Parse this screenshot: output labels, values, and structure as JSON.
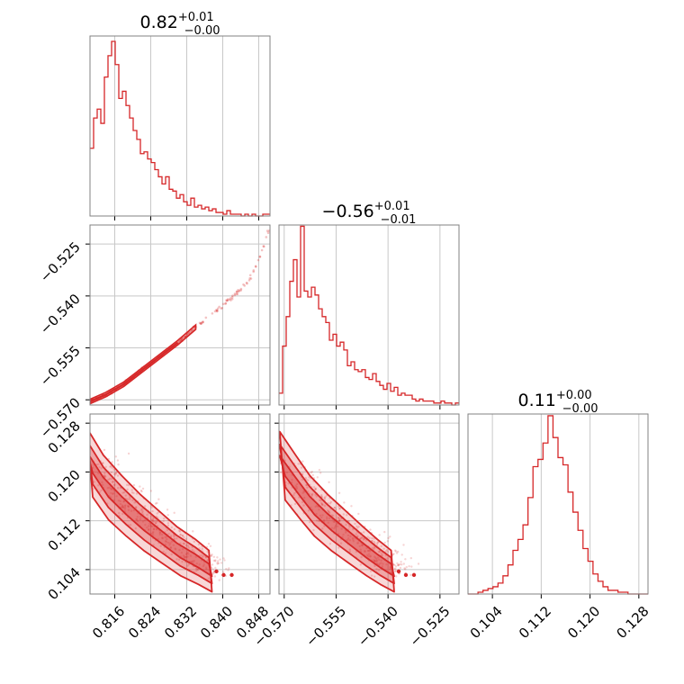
{
  "chart_data": {
    "type": "corner",
    "color": "#d62728",
    "parameters": [
      {
        "id": "p0",
        "title": "0.82",
        "plus": "+0.01",
        "minus": "−0.00",
        "range": [
          0.8105,
          0.8505
        ],
        "ticks": [
          "0.816",
          "0.824",
          "0.832",
          "0.840",
          "0.848"
        ],
        "tick_values": [
          0.816,
          0.824,
          0.832,
          0.84,
          0.848
        ]
      },
      {
        "id": "p1",
        "title": "−0.56",
        "plus": "+0.01",
        "minus": "−0.01",
        "range": [
          -0.5715,
          -0.5195
        ],
        "ticks": [
          "−0.570",
          "−0.555",
          "−0.540",
          "−0.525"
        ],
        "tick_values": [
          -0.57,
          -0.555,
          -0.54,
          -0.525
        ]
      },
      {
        "id": "p2",
        "title": "0.11",
        "plus": "+0.00",
        "minus": "−0.00",
        "range": [
          0.1,
          0.1295
        ],
        "ticks": [
          "0.104",
          "0.112",
          "0.120",
          "0.128"
        ],
        "tick_values": [
          0.104,
          0.112,
          0.12,
          0.128
        ]
      }
    ],
    "histograms": [
      {
        "param": 0,
        "max": 0.97,
        "counts": [
          0.38,
          0.55,
          0.6,
          0.52,
          0.78,
          0.9,
          0.98,
          0.85,
          0.66,
          0.7,
          0.62,
          0.55,
          0.48,
          0.43,
          0.35,
          0.36,
          0.32,
          0.3,
          0.26,
          0.22,
          0.18,
          0.22,
          0.15,
          0.14,
          0.1,
          0.12,
          0.08,
          0.06,
          0.1,
          0.05,
          0.06,
          0.04,
          0.05,
          0.03,
          0.04,
          0.02,
          0.02,
          0.01,
          0.03,
          0.01,
          0.01,
          0.01,
          0.0,
          0.01,
          0.0,
          0.01,
          0.0,
          0.0,
          0.01,
          0.01
        ]
      },
      {
        "param": 1,
        "max": 0.88,
        "counts": [
          0.06,
          0.3,
          0.45,
          0.63,
          0.74,
          0.55,
          0.91,
          0.58,
          0.55,
          0.6,
          0.56,
          0.49,
          0.45,
          0.42,
          0.33,
          0.36,
          0.3,
          0.32,
          0.28,
          0.2,
          0.22,
          0.18,
          0.17,
          0.18,
          0.14,
          0.13,
          0.16,
          0.12,
          0.1,
          0.08,
          0.11,
          0.07,
          0.09,
          0.05,
          0.06,
          0.05,
          0.05,
          0.03,
          0.02,
          0.03,
          0.02,
          0.02,
          0.02,
          0.01,
          0.01,
          0.02,
          0.01,
          0.01,
          0.0,
          0.01
        ]
      },
      {
        "param": 2,
        "max": 0.95,
        "counts": [
          0.0,
          0.0,
          0.01,
          0.02,
          0.03,
          0.04,
          0.06,
          0.1,
          0.16,
          0.24,
          0.3,
          0.38,
          0.53,
          0.7,
          0.74,
          0.83,
          0.98,
          0.86,
          0.75,
          0.71,
          0.56,
          0.45,
          0.35,
          0.25,
          0.18,
          0.11,
          0.07,
          0.04,
          0.02,
          0.02,
          0.01,
          0.01,
          0.0,
          0.0,
          0.0,
          0.0
        ]
      }
    ],
    "pairs": [
      {
        "x": 0,
        "y": 1,
        "curve": [
          [
            0.8105,
            -0.5705
          ],
          [
            0.814,
            -0.5685
          ],
          [
            0.818,
            -0.5655
          ],
          [
            0.822,
            -0.5615
          ],
          [
            0.826,
            -0.5575
          ],
          [
            0.83,
            -0.5535
          ],
          [
            0.834,
            -0.549
          ],
          [
            0.838,
            -0.545
          ],
          [
            0.842,
            -0.5405
          ],
          [
            0.846,
            -0.5355
          ],
          [
            0.8505,
            -0.5205
          ]
        ],
        "ridge_end": 0.831
      },
      {
        "x": 0,
        "y": 2,
        "band": [
          [
            0.8105,
            0.1215
          ],
          [
            0.814,
            0.1175
          ],
          [
            0.818,
            0.1145
          ],
          [
            0.822,
            0.1118
          ],
          [
            0.826,
            0.1095
          ],
          [
            0.83,
            0.1072
          ],
          [
            0.834,
            0.1055
          ],
          [
            0.837,
            0.104
          ]
        ],
        "width": 0.0028
      },
      {
        "x": 1,
        "y": 2,
        "band": [
          [
            -0.5705,
            0.121
          ],
          [
            -0.566,
            0.1175
          ],
          [
            -0.562,
            0.1145
          ],
          [
            -0.557,
            0.1118
          ],
          [
            -0.552,
            0.1095
          ],
          [
            -0.547,
            0.1072
          ],
          [
            -0.543,
            0.1055
          ],
          [
            -0.539,
            0.104
          ]
        ],
        "width": 0.0028
      }
    ]
  }
}
